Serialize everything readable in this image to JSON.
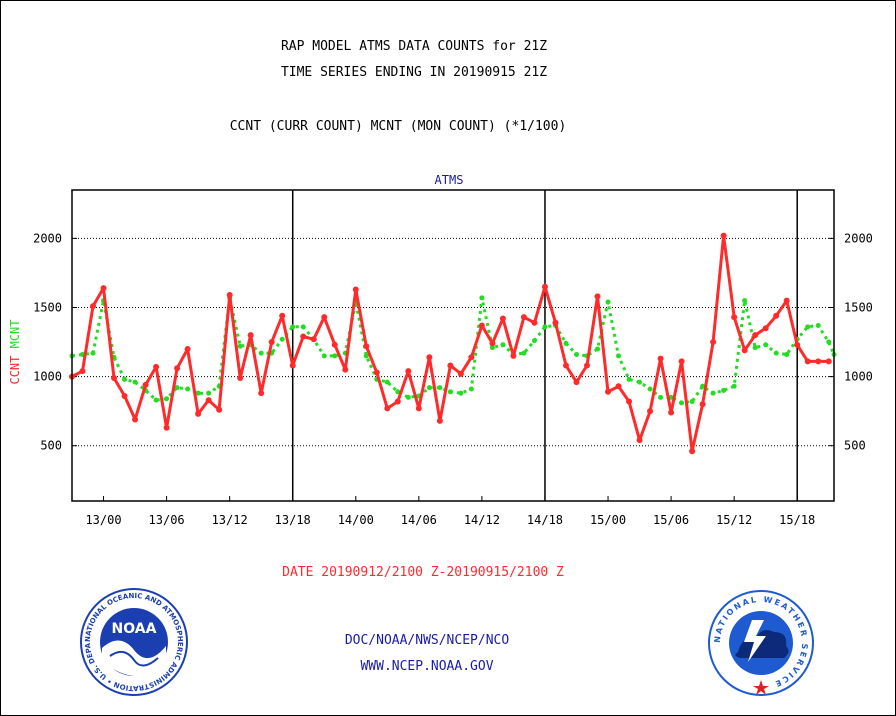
{
  "header": {
    "title_line1": "RAP MODEL ATMS DATA COUNTS for 21Z",
    "title_line2": "TIME SERIES ENDING IN 20190915 21Z",
    "subtitle": "CCNT (CURR COUNT) MCNT (MON COUNT) (*1/100)"
  },
  "footer": {
    "date_range": "DATE 20190912/2100 Z-20190915/2100 Z",
    "org_line": "DOC/NOAA/NWS/NCEP/NCO",
    "url_line": "WWW.NCEP.NOAA.GOV"
  },
  "logos": {
    "noaa_text": "NOAA",
    "noaa_ring": "NATIONAL OCEANIC AND ATMOSPHERIC ADMINISTRATION • U.S. DEPARTMENT OF COMMERCE •",
    "nws_ring": "NATIONAL WEATHER SERVICE"
  },
  "colors": {
    "ccnt": "#ff2a2a",
    "mcnt": "#22dd22",
    "title_blue": "#1a1aaa",
    "date_red": "#ff2a2a",
    "noaa_blue": "#1b3fb0",
    "nws_blue": "#1e5bd0"
  },
  "chart_data": {
    "type": "line",
    "title": "ATMS",
    "ylabel_ccnt": "CCNT",
    "ylabel_mcnt": "MCNT",
    "ylim": [
      100,
      2350
    ],
    "yticks": [
      500,
      1000,
      1500,
      2000
    ],
    "grid": true,
    "x_range_hours": [
      -3,
      69.5
    ],
    "x_tick_hours": [
      0,
      6,
      12,
      18,
      24,
      30,
      36,
      42,
      48,
      54,
      60,
      66
    ],
    "x_tick_labels": [
      "13/00",
      "13/06",
      "13/12",
      "13/18",
      "14/00",
      "14/06",
      "14/12",
      "14/18",
      "15/00",
      "15/06",
      "15/12",
      "15/18"
    ],
    "day_boundaries_hours": [
      18,
      42,
      66
    ],
    "series": [
      {
        "name": "CCNT",
        "x": [
          -3,
          -2,
          -1,
          0,
          1,
          2,
          3,
          4,
          5,
          6,
          7,
          8,
          9,
          10,
          11,
          12,
          13,
          14,
          15,
          16,
          17,
          18,
          19,
          20,
          21,
          22,
          23,
          24,
          25,
          26,
          27,
          28,
          29,
          30,
          31,
          32,
          33,
          34,
          35,
          36,
          37,
          38,
          39,
          40,
          41,
          42,
          43,
          44,
          45,
          46,
          47,
          48,
          49,
          50,
          51,
          52,
          53,
          54,
          55,
          56,
          57,
          58,
          59,
          60,
          61,
          62,
          63,
          64,
          65,
          66,
          67,
          68,
          69
        ],
        "values": [
          1000,
          1040,
          1510,
          1640,
          990,
          860,
          690,
          940,
          1070,
          630,
          1060,
          1200,
          730,
          830,
          760,
          1590,
          990,
          1300,
          880,
          1250,
          1440,
          1080,
          1290,
          1270,
          1430,
          1230,
          1050,
          1630,
          1220,
          1030,
          770,
          820,
          1040,
          770,
          1140,
          680,
          1080,
          1020,
          1140,
          1370,
          1240,
          1420,
          1150,
          1430,
          1390,
          1650,
          1390,
          1080,
          960,
          1080,
          1580,
          890,
          930,
          820,
          540,
          750,
          1130,
          740,
          1110,
          460,
          800,
          1250,
          2020,
          1430,
          1190,
          1300,
          1350,
          1440,
          1550,
          1230,
          1110,
          1110,
          1110
        ]
      },
      {
        "name": "MCNT",
        "x": [
          -3,
          -2,
          -1,
          0,
          1,
          2,
          3,
          4,
          5,
          6,
          7,
          8,
          9,
          10,
          11,
          12,
          13,
          14,
          15,
          16,
          17,
          18,
          19,
          20,
          21,
          22,
          23,
          24,
          25,
          26,
          27,
          28,
          29,
          30,
          31,
          32,
          33,
          34,
          35,
          36,
          37,
          38,
          39,
          40,
          41,
          42,
          43,
          44,
          45,
          46,
          47,
          48,
          49,
          50,
          51,
          52,
          53,
          54,
          55,
          56,
          57,
          58,
          59,
          60,
          61,
          62,
          63,
          64,
          65,
          66,
          67,
          68,
          69,
          69.5
        ],
        "values": [
          1150,
          1160,
          1170,
          1550,
          1140,
          980,
          960,
          900,
          830,
          840,
          920,
          910,
          880,
          880,
          930,
          1570,
          1220,
          1230,
          1170,
          1170,
          1270,
          1360,
          1360,
          1270,
          1150,
          1150,
          1170,
          1540,
          1150,
          980,
          960,
          890,
          850,
          860,
          920,
          920,
          890,
          880,
          910,
          1570,
          1210,
          1230,
          1160,
          1170,
          1260,
          1360,
          1370,
          1240,
          1160,
          1150,
          1200,
          1540,
          1150,
          980,
          960,
          910,
          850,
          850,
          810,
          820,
          930,
          880,
          900,
          930,
          1550,
          1210,
          1230,
          1170,
          1160,
          1270,
          1360,
          1370,
          1250,
          1160
        ]
      }
    ]
  }
}
